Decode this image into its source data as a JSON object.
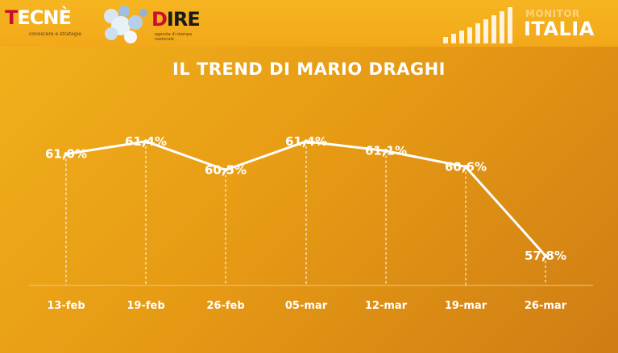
{
  "header": {
    "logo_tecne": "TECNÈ",
    "logo_tecne_tagline": "conoscere e strategie",
    "logo_dire": "DIRE",
    "logo_monitor_small": "MONITOR",
    "logo_monitor_big": "ITALIA"
  },
  "colors": {
    "background": "#e69a14",
    "line": "#ffffff",
    "text": "#ffffff"
  },
  "chart_data": {
    "type": "line",
    "title": "IL TREND DI MARIO DRAGHI",
    "categories": [
      "13-feb",
      "19-feb",
      "26-feb",
      "05-mar",
      "12-mar",
      "19-mar",
      "26-mar"
    ],
    "series": [
      {
        "values": [
          61.0,
          61.4,
          60.5,
          61.4,
          61.1,
          60.6,
          57.8
        ],
        "labels": [
          "61,0%",
          "61,4%",
          "60,5%",
          "61,4%",
          "61,1%",
          "60,6%",
          "57,8%"
        ]
      }
    ],
    "ylim": [
      57.5,
      61.8
    ],
    "grid": false,
    "legend": "none",
    "dashed_drop_lines": true
  }
}
